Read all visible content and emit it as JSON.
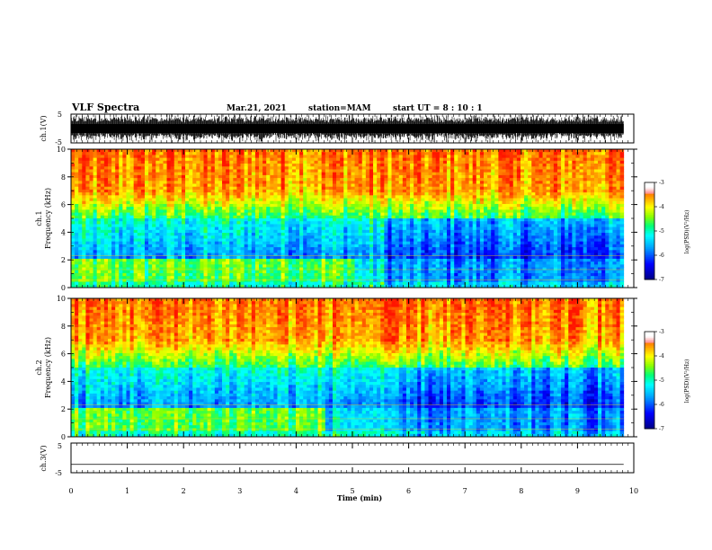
{
  "header": {
    "title": "VLF Spectra",
    "date": "Mar.21, 2021",
    "station": "station=MAM",
    "start": "start  UT  =   8  : 10 : 1"
  },
  "chart_data": [
    {
      "type": "line",
      "panel": "ch1-waveform",
      "ylabel": "ch.1(V)",
      "ylim": [
        -5,
        5
      ],
      "ytick_labels": [
        "5",
        "-5"
      ],
      "xlim": [
        0,
        10
      ],
      "x_end_of_data": 9.82,
      "description_series": "dense spiky waveform filling most of the range"
    },
    {
      "type": "heatmap",
      "panel": "ch1-spectrogram",
      "ylabel_line1": "ch.1",
      "ylabel_line2": "Frequency (kHz)",
      "ylim": [
        0,
        10
      ],
      "ytick_labels": [
        "10",
        "8",
        "6",
        "4",
        "2",
        "0"
      ],
      "xlim": [
        0,
        10
      ],
      "x_end_of_data": 9.82,
      "colorbar": {
        "label": "log(PSD)(V²/Hz)",
        "range": [
          -7,
          -3
        ],
        "tick_labels": [
          "-3",
          "-4",
          "-5",
          "-6",
          "-7"
        ],
        "colors": [
          "#000080",
          "#0000ff",
          "#00a0ff",
          "#00ffff",
          "#00ff80",
          "#80ff00",
          "#ffff00",
          "#ffa000",
          "#ff2000",
          "#ffffff"
        ]
      }
    },
    {
      "type": "heatmap",
      "panel": "ch2-spectrogram",
      "ylabel_line1": "ch.2",
      "ylabel_line2": "Frequency (kHz)",
      "ylim": [
        0,
        10
      ],
      "ytick_labels": [
        "10",
        "8",
        "6",
        "4",
        "2",
        "0"
      ],
      "xlim": [
        0,
        10
      ],
      "x_end_of_data": 9.82,
      "colorbar": {
        "label": "log(PSD)(V²/Hz)",
        "range": [
          -7,
          -3
        ],
        "tick_labels": [
          "-3",
          "-4",
          "-5",
          "-6",
          "-7"
        ]
      }
    },
    {
      "type": "line",
      "panel": "ch3-waveform",
      "ylabel": "ch.3(V)",
      "ylim": [
        -5,
        5
      ],
      "ytick_labels": [
        "5",
        "-5"
      ],
      "xlim": [
        0,
        10
      ],
      "x_end_of_data": 9.82,
      "flat_value": -2.2
    }
  ],
  "xaxis": {
    "label": "Time (min)",
    "tick_labels": [
      "0",
      "1",
      "2",
      "3",
      "4",
      "5",
      "6",
      "7",
      "8",
      "9",
      "10"
    ]
  },
  "colors": {
    "axis": "#000000",
    "background": "#ffffff"
  }
}
